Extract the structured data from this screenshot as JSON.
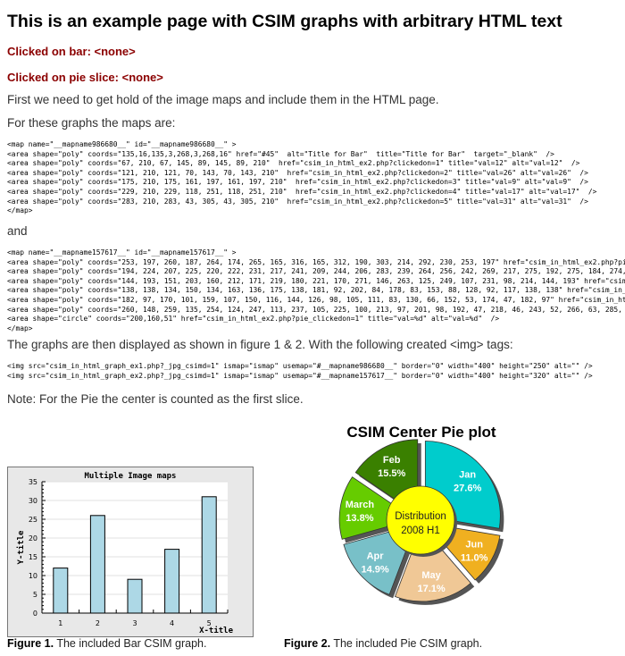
{
  "title": "This is an example page with CSIM graphs with arbitrary HTML text",
  "clicked_bar": "Clicked on bar: <none>",
  "clicked_pie": "Clicked on pie slice: <none>",
  "intro": "First we need to get hold of the image maps and include them in the HTML page.",
  "maps_intro": "For these graphs the maps are:",
  "bar_map": [
    "<map name=\"__mapname986680__\" id=\"__mapname986680__\" >",
    "<area shape=\"poly\" coords=\"135,16,135,3,268,3,268,16\" href=\"#45\"  alt=\"Title for Bar\"  title=\"Title for Bar\"  target=\"_blank\"  />",
    "<area shape=\"poly\" coords=\"67, 210, 67, 145, 89, 145, 89, 210\"  href=\"csim_in_html_ex2.php?clickedon=1\" title=\"val=12\" alt=\"val=12\"  />",
    "<area shape=\"poly\" coords=\"121, 210, 121, 70, 143, 70, 143, 210\"  href=\"csim_in_html_ex2.php?clickedon=2\" title=\"val=26\" alt=\"val=26\"  />",
    "<area shape=\"poly\" coords=\"175, 210, 175, 161, 197, 161, 197, 210\"  href=\"csim_in_html_ex2.php?clickedon=3\" title=\"val=9\" alt=\"val=9\"  />",
    "<area shape=\"poly\" coords=\"229, 210, 229, 118, 251, 118, 251, 210\"  href=\"csim_in_html_ex2.php?clickedon=4\" title=\"val=17\" alt=\"val=17\"  />",
    "<area shape=\"poly\" coords=\"283, 210, 283, 43, 305, 43, 305, 210\"  href=\"csim_in_html_ex2.php?clickedon=5\" title=\"val=31\" alt=\"val=31\"  />",
    "</map>"
  ],
  "and": "and",
  "pie_map": [
    "<map name=\"__mapname157617__\" id=\"__mapname157617__\" >",
    "<area shape=\"poly\" coords=\"253, 197, 260, 187, 264, 174, 265, 165, 316, 165, 312, 190, 303, 214, 292, 230, 253, 197\" href=\"csim_in_html_ex2.php?pie_cli",
    "<area shape=\"poly\" coords=\"194, 224, 207, 225, 220, 222, 231, 217, 241, 209, 244, 206, 283, 239, 264, 256, 242, 269, 217, 275, 192, 275, 184, 274, 194,",
    "<area shape=\"poly\" coords=\"144, 193, 151, 203, 160, 212, 171, 219, 180, 221, 170, 271, 146, 263, 125, 249, 107, 231, 98, 214, 144, 193\" href=\"csim_in_h",
    "<area shape=\"poly\" coords=\"138, 138, 134, 150, 134, 163, 136, 175, 138, 181, 92, 202, 84, 178, 83, 153, 88, 128, 92, 117, 138, 138\" href=\"csim_in_html_",
    "<area shape=\"poly\" coords=\"182, 97, 170, 101, 159, 107, 150, 116, 144, 126, 98, 105, 111, 83, 130, 66, 152, 53, 174, 47, 182, 97\" href=\"csim_in_html_ex",
    "<area shape=\"poly\" coords=\"260, 148, 259, 135, 254, 124, 247, 113, 237, 105, 225, 100, 213, 97, 201, 98, 192, 47, 218, 46, 243, 52, 266, 63, 285, 80, 2",
    "<area shape=\"circle\" coords=\"200,160,51\" href=\"csim_in_html_ex2.php?pie_clickedon=1\" title=\"val=%d\" alt=\"val=%d\"  />",
    "</map>"
  ],
  "displayed": "The graphs are then displayed as shown in figure 1 & 2. With the following created <img> tags:",
  "img_tags": [
    "<img src=\"csim_in_html_graph_ex1.php?_jpg_csimd=1\" ismap=\"ismap\" usemap=\"#__mapname986680__\" border=\"0\" width=\"400\" height=\"250\" alt=\"\" />",
    "<img src=\"csim_in_html_graph_ex2.php?_jpg_csimd=1\" ismap=\"ismap\" usemap=\"#__mapname157617__\" border=\"0\" width=\"400\" height=\"320\" alt=\"\" />"
  ],
  "note": "Note: For the Pie the center is counted as the first slice.",
  "fig1": {
    "label": "Figure 1.",
    "text": " The included Bar CSIM graph."
  },
  "fig2": {
    "label": "Figure 2.",
    "text": " The included Pie CSIM graph."
  },
  "chart_data": [
    {
      "type": "bar",
      "title": "Multiple Image maps",
      "xlabel": "X-title",
      "ylabel": "Y-title",
      "categories": [
        "1",
        "2",
        "3",
        "4",
        "5"
      ],
      "values": [
        12,
        26,
        9,
        17,
        31
      ],
      "ylim": [
        0,
        35
      ],
      "yticks": [
        "0",
        "5",
        "10",
        "15",
        "20",
        "25",
        "30",
        "35"
      ],
      "grid": true,
      "bar_color": "#add8e6"
    },
    {
      "type": "pie",
      "title": "CSIM Center Pie plot",
      "center_label": [
        "Distribution",
        "2008 H1"
      ],
      "center_color": "#ffff00",
      "slices": [
        {
          "label": "Jan",
          "pct": "27.6%",
          "value": 27.6,
          "color": "#00cccc"
        },
        {
          "label": "Jun",
          "pct": "11.0%",
          "value": 11.0,
          "color": "#f0b020"
        },
        {
          "label": "May",
          "pct": "17.1%",
          "value": 17.1,
          "color": "#f0c896"
        },
        {
          "label": "Apr",
          "pct": "14.9%",
          "value": 14.9,
          "color": "#78c0c8"
        },
        {
          "label": "March",
          "pct": "13.8%",
          "value": 13.8,
          "color": "#66cc00"
        },
        {
          "label": "Feb",
          "pct": "15.5%",
          "value": 15.5,
          "color": "#3a8000"
        }
      ]
    }
  ]
}
